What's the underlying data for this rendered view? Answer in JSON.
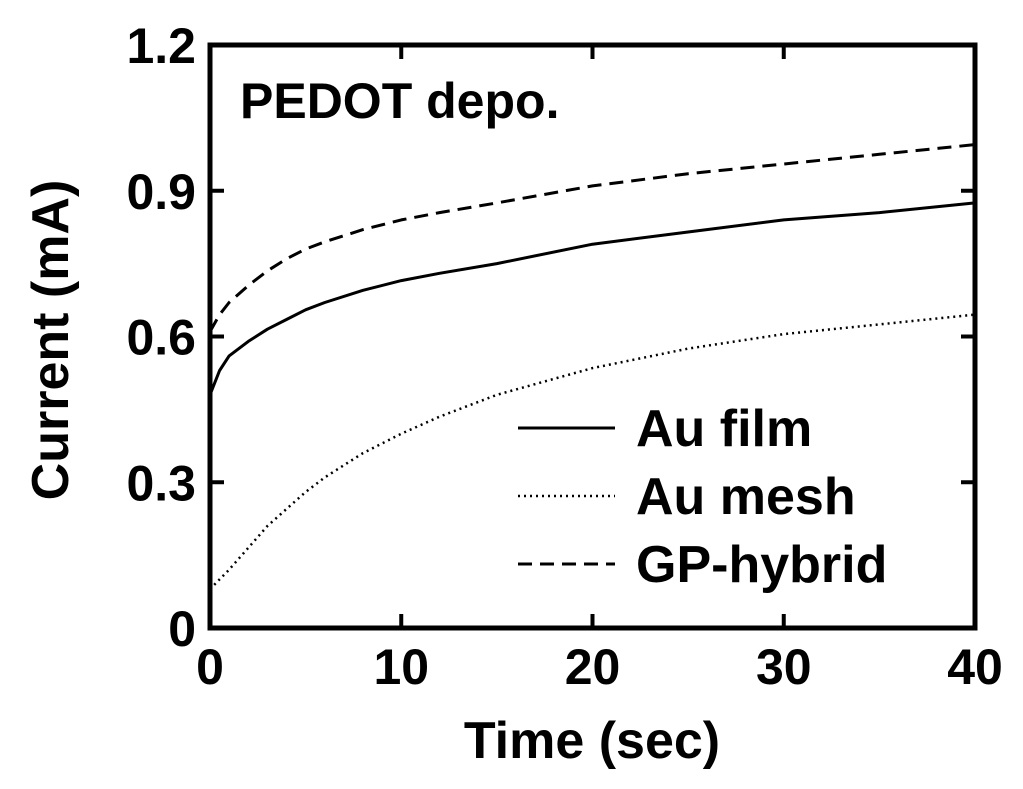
{
  "chart_data": {
    "type": "line",
    "title": "",
    "annotation": "PEDOT depo.",
    "xlabel": "Time (sec)",
    "ylabel": "Current (mA)",
    "xlim": [
      0,
      40
    ],
    "ylim": [
      0,
      1.2
    ],
    "xticks": [
      0,
      10,
      20,
      30,
      40
    ],
    "xtick_labels": [
      "0",
      "10",
      "20",
      "30",
      "40"
    ],
    "yticks": [
      0,
      0.3,
      0.6,
      0.9,
      1.2
    ],
    "ytick_labels": [
      "0",
      "0.3",
      "0.6",
      "0.9",
      "1.2"
    ],
    "grid": false,
    "legend_position": "bottom-right",
    "series": [
      {
        "name": "Au film",
        "style": "solid",
        "x": [
          0,
          0.5,
          1,
          2,
          3,
          4,
          5,
          6,
          8,
          10,
          12,
          15,
          20,
          25,
          30,
          35,
          40
        ],
        "y": [
          0.48,
          0.53,
          0.56,
          0.59,
          0.615,
          0.635,
          0.655,
          0.67,
          0.695,
          0.715,
          0.73,
          0.75,
          0.79,
          0.815,
          0.84,
          0.855,
          0.875
        ]
      },
      {
        "name": "Au mesh",
        "style": "dotted",
        "x": [
          0,
          1,
          2,
          3,
          4,
          5,
          6,
          7,
          8,
          10,
          12,
          15,
          20,
          25,
          30,
          35,
          40
        ],
        "y": [
          0.08,
          0.12,
          0.165,
          0.21,
          0.245,
          0.28,
          0.31,
          0.335,
          0.36,
          0.4,
          0.435,
          0.48,
          0.535,
          0.575,
          0.605,
          0.625,
          0.645
        ]
      },
      {
        "name": "GP-hybrid",
        "style": "dashed",
        "x": [
          0,
          0.5,
          1,
          2,
          3,
          4,
          5,
          6,
          8,
          10,
          12,
          15,
          20,
          25,
          30,
          35,
          40
        ],
        "y": [
          0.61,
          0.645,
          0.67,
          0.705,
          0.735,
          0.76,
          0.78,
          0.795,
          0.82,
          0.84,
          0.855,
          0.875,
          0.91,
          0.935,
          0.955,
          0.975,
          0.995
        ]
      }
    ]
  }
}
